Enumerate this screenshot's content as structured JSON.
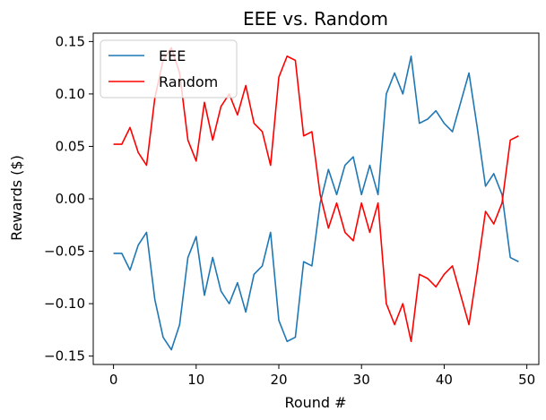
{
  "chart_data": {
    "type": "line",
    "title": "EEE vs. Random",
    "xlabel": "Round #",
    "ylabel": "Rewards ($)",
    "xlim": [
      -2.45,
      51.45
    ],
    "ylim": [
      -0.158,
      0.158
    ],
    "xticks": [
      0,
      10,
      20,
      30,
      40,
      50
    ],
    "yticks": [
      -0.15,
      -0.1,
      -0.05,
      0.0,
      0.05,
      0.1,
      0.15
    ],
    "xtick_labels": [
      "0",
      "10",
      "20",
      "30",
      "40",
      "50"
    ],
    "ytick_labels": [
      "−0.15",
      "−0.10",
      "−0.05",
      "0.00",
      "0.05",
      "0.10",
      "0.15"
    ],
    "grid": false,
    "legend_position": "upper-left",
    "x": [
      0,
      1,
      2,
      3,
      4,
      5,
      6,
      7,
      8,
      9,
      10,
      11,
      12,
      13,
      14,
      15,
      16,
      17,
      18,
      19,
      20,
      21,
      22,
      23,
      24,
      25,
      26,
      27,
      28,
      29,
      30,
      31,
      32,
      33,
      34,
      35,
      36,
      37,
      38,
      39,
      40,
      41,
      42,
      43,
      44,
      45,
      46,
      47,
      48,
      49
    ],
    "series": [
      {
        "name": "EEE",
        "color": "#1f77b4",
        "values": [
          -0.052,
          -0.052,
          -0.068,
          -0.044,
          -0.032,
          -0.096,
          -0.132,
          -0.144,
          -0.12,
          -0.056,
          -0.036,
          -0.092,
          -0.056,
          -0.088,
          -0.1,
          -0.08,
          -0.108,
          -0.072,
          -0.064,
          -0.032,
          -0.116,
          -0.136,
          -0.132,
          -0.06,
          -0.064,
          -0.004,
          0.028,
          0.004,
          0.032,
          0.04,
          0.004,
          0.032,
          0.004,
          0.1,
          0.12,
          0.1,
          0.136,
          0.072,
          0.076,
          0.084,
          0.072,
          0.064,
          0.092,
          0.12,
          0.068,
          0.012,
          0.024,
          0.004,
          -0.056,
          -0.06
        ]
      },
      {
        "name": "Random",
        "color": "#ff0000",
        "values": [
          0.052,
          0.052,
          0.068,
          0.044,
          0.032,
          0.096,
          0.132,
          0.144,
          0.12,
          0.056,
          0.036,
          0.092,
          0.056,
          0.088,
          0.1,
          0.08,
          0.108,
          0.072,
          0.064,
          0.032,
          0.116,
          0.136,
          0.132,
          0.06,
          0.064,
          0.004,
          -0.028,
          -0.004,
          -0.032,
          -0.04,
          -0.004,
          -0.032,
          -0.004,
          -0.1,
          -0.12,
          -0.1,
          -0.136,
          -0.072,
          -0.076,
          -0.084,
          -0.072,
          -0.064,
          -0.092,
          -0.12,
          -0.068,
          -0.012,
          -0.024,
          -0.004,
          0.056,
          0.06
        ]
      }
    ]
  }
}
